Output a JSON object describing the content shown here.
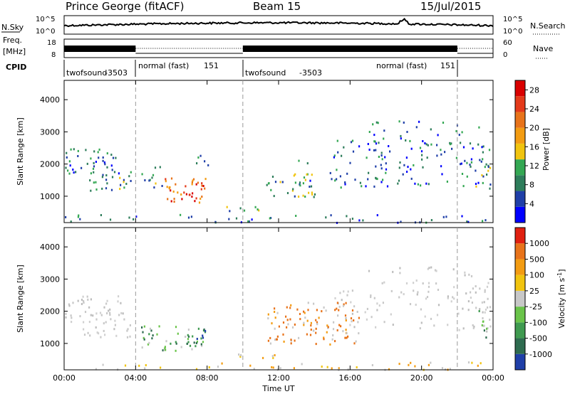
{
  "header": {
    "station": "Prince George (fitACF)",
    "beam": "Beam 15",
    "date": "15/Jul/2015"
  },
  "top_panels": {
    "noise": {
      "left_label": "N.Sky",
      "right_label": "N.Search",
      "left_ticks": [
        "10^5",
        "10^0"
      ],
      "right_ticks": [
        "10^5",
        "10^0"
      ]
    },
    "freq": {
      "left_label": "Freq.",
      "left_unit": "[MHz]",
      "left_ticks": [
        "18",
        "8"
      ],
      "right_label": "Nave",
      "right_ticks": [
        "60",
        "0"
      ]
    },
    "cpid": {
      "label": "CPID",
      "modes": [
        {
          "name": "twofsound",
          "id": "-3503"
        },
        {
          "name": "normal (fast)",
          "id": "151"
        },
        {
          "name": "twofsound",
          "id": "-3503"
        },
        {
          "name": "normal (fast)",
          "id": "151"
        }
      ]
    }
  },
  "chart_data": [
    {
      "type": "heatmap",
      "panel": "power",
      "xlabel": "Time UT",
      "ylabel": "Slant Range [km]",
      "x_ticks": [
        "00:00",
        "04:00",
        "08:00",
        "12:00",
        "16:00",
        "20:00",
        "00:00"
      ],
      "x_range_hours": [
        0,
        24
      ],
      "y_ticks": [
        1000,
        2000,
        3000,
        4000
      ],
      "ylim": [
        180,
        4600
      ],
      "colorbar": {
        "label": "Power [dB]",
        "ticks": [
          4,
          8,
          12,
          16,
          20,
          24,
          28
        ],
        "range": [
          0,
          30
        ],
        "colors": [
          "#0000ff",
          "#1f3fa8",
          "#2e7d5b",
          "#34a853",
          "#f1c40f",
          "#f39c12",
          "#e8731a",
          "#e43a1a",
          "#d90000"
        ]
      },
      "mode_boundaries_hours": [
        4,
        10,
        22
      ],
      "regions": [
        {
          "t": [
            0.0,
            3.3
          ],
          "r": [
            1700,
            2500
          ],
          "level": "low",
          "density": 0.6
        },
        {
          "t": [
            1.0,
            3.8
          ],
          "r": [
            1200,
            1800
          ],
          "level": "mid",
          "density": 0.6
        },
        {
          "t": [
            4.3,
            5.6
          ],
          "r": [
            1300,
            2000
          ],
          "level": "mid",
          "density": 0.5
        },
        {
          "t": [
            5.6,
            7.9
          ],
          "r": [
            700,
            1600
          ],
          "level": "high",
          "density": 0.8
        },
        {
          "t": [
            7.0,
            8.1
          ],
          "r": [
            1900,
            2300
          ],
          "level": "mid",
          "density": 0.5
        },
        {
          "t": [
            9.0,
            11.8
          ],
          "r": [
            550,
            700
          ],
          "level": "mid",
          "density": 0.7
        },
        {
          "t": [
            11.3,
            14.3
          ],
          "r": [
            1000,
            1800
          ],
          "level": "mid",
          "density": 0.5
        },
        {
          "t": [
            13.0,
            23.8
          ],
          "r": [
            1300,
            2800
          ],
          "level": "low",
          "density": 0.3
        },
        {
          "t": [
            17.0,
            23.8
          ],
          "r": [
            2400,
            3400
          ],
          "level": "low",
          "density": 0.2
        },
        {
          "t": [
            0.0,
            23.8
          ],
          "r": [
            200,
            450
          ],
          "level": "low",
          "density": 0.3
        },
        {
          "t": [
            23.0,
            23.9
          ],
          "r": [
            1200,
            2200
          ],
          "level": "mid",
          "density": 0.6
        }
      ]
    },
    {
      "type": "heatmap",
      "panel": "velocity",
      "xlabel": "Time UT",
      "ylabel": "Slant Range [km]",
      "x_ticks": [
        "00:00",
        "04:00",
        "08:00",
        "12:00",
        "16:00",
        "20:00",
        "00:00"
      ],
      "x_range_hours": [
        0,
        24
      ],
      "y_ticks": [
        1000,
        2000,
        3000,
        4000
      ],
      "ylim": [
        180,
        4600
      ],
      "colorbar": {
        "label": "Velocity [m s",
        "label_sup": "-1",
        "label_end": "]",
        "ticks": [
          "1000",
          "500",
          "100",
          "25",
          "-25",
          "-100",
          "-500",
          "-1000"
        ],
        "colors": [
          "#1f3fa8",
          "#2e6b4f",
          "#3f9a50",
          "#6ac44a",
          "#c8c8c8",
          "#f1c40f",
          "#f39c12",
          "#e8731a",
          "#e02010"
        ]
      },
      "mode_boundaries_hours": [
        4,
        10,
        22
      ],
      "regions": [
        {
          "t": [
            0.0,
            3.3
          ],
          "r": [
            1700,
            2500
          ],
          "level": "gray",
          "density": 0.6
        },
        {
          "t": [
            1.0,
            3.8
          ],
          "r": [
            1200,
            1800
          ],
          "level": "gray",
          "density": 0.6
        },
        {
          "t": [
            4.3,
            7.9
          ],
          "r": [
            800,
            1600
          ],
          "level": "green",
          "density": 0.7
        },
        {
          "t": [
            7.2,
            8.1
          ],
          "r": [
            1000,
            1500
          ],
          "level": "blue",
          "density": 0.5
        },
        {
          "t": [
            9.0,
            11.8
          ],
          "r": [
            550,
            700
          ],
          "level": "yellow",
          "density": 0.7
        },
        {
          "t": [
            11.3,
            16.5
          ],
          "r": [
            1000,
            2300
          ],
          "level": "orange",
          "density": 0.6
        },
        {
          "t": [
            15.0,
            23.8
          ],
          "r": [
            1400,
            2700
          ],
          "level": "gray",
          "density": 0.3
        },
        {
          "t": [
            17.0,
            23.8
          ],
          "r": [
            2400,
            3400
          ],
          "level": "gray",
          "density": 0.2
        },
        {
          "t": [
            0.0,
            23.8
          ],
          "r": [
            200,
            450
          ],
          "level": "yellow",
          "density": 0.3
        },
        {
          "t": [
            23.0,
            23.9
          ],
          "r": [
            1200,
            2200
          ],
          "level": "green",
          "density": 0.5
        }
      ]
    }
  ]
}
